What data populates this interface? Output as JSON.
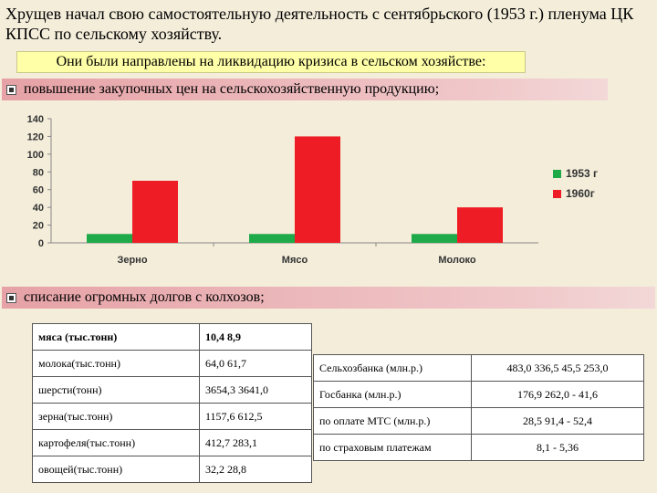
{
  "title": "Хрущев начал свою самостоятельную деятельность с сентябрьского (1953 г.) пленума ЦК КПСС по сельскому хозяйству.",
  "banner": "Они были направлены на ликвидацию кризиса в сельском хозяйстве:",
  "bullets": [
    "повышение закупочных цен на сельскохозяйственную продукцию;",
    "списание огромных долгов с колхозов;"
  ],
  "colors": {
    "series_1953": "#1faa4a",
    "series_1960": "#ee1c24",
    "background": "#f3edda",
    "banner": "#ffffa8"
  },
  "chart_data": {
    "type": "bar",
    "categories": [
      "Зерно",
      "Мясо",
      "Молоко"
    ],
    "series": [
      {
        "name": "1953 г",
        "values": [
          10,
          10,
          10
        ]
      },
      {
        "name": "1960г",
        "values": [
          70,
          120,
          40
        ]
      }
    ],
    "ylim": [
      0,
      140
    ],
    "yticks": [
      "0",
      "20",
      "40",
      "60",
      "80",
      "100",
      "120",
      "140"
    ],
    "legend": "right",
    "grid": false
  },
  "table_left": [
    {
      "label": "мяса (тыс.тонн)",
      "value": "10,4 8,9"
    },
    {
      "label": "молока(тыс.тонн)",
      "value": "64,0 61,7"
    },
    {
      "label": "шерсти(тонн)",
      "value": "3654,3 3641,0"
    },
    {
      "label": "зерна(тыс.тонн)",
      "value": "1157,6 612,5"
    },
    {
      "label": "картофеля(тыс.тонн)",
      "value": "412,7 283,1"
    },
    {
      "label": "овощей(тыс.тонн)",
      "value": "32,2 28,8"
    }
  ],
  "table_right": [
    {
      "label": "Сельхозбанка (млн.р.)",
      "value": "483,0 336,5 45,5 253,0"
    },
    {
      "label": "Госбанка (млн.р.)",
      "value": "176,9 262,0 - 41,6"
    },
    {
      "label": "по оплате МТС (млн.р.)",
      "value": "28,5 91,4 - 52,4"
    },
    {
      "label": "по страховым платежам",
      "value": "8,1 - 5,36"
    }
  ]
}
